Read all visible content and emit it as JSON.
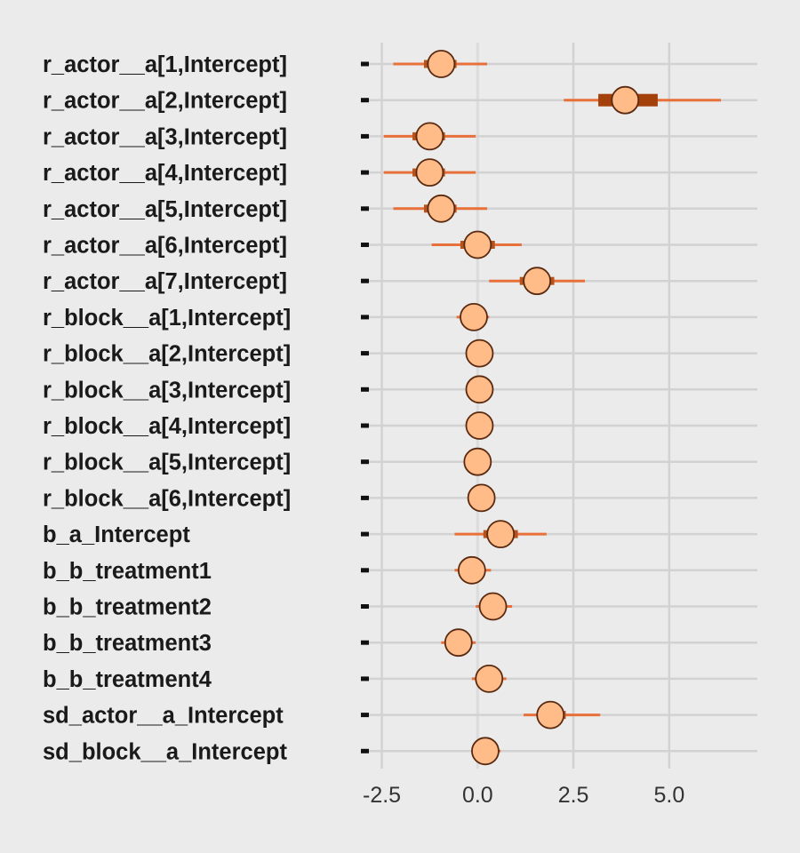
{
  "chart_data": {
    "type": "scatter",
    "title": "",
    "xlabel": "",
    "ylabel": "",
    "xlim": [
      -3.0,
      7.3
    ],
    "x_ticks": [
      -2.5,
      0.0,
      2.5,
      5.0
    ],
    "x_tick_labels": [
      "-2.5",
      "0.0",
      "2.5",
      "5.0"
    ],
    "grid": true,
    "colors": {
      "background": "#ebebeb",
      "grid": "#d2d2d2",
      "zero_line": "#dcdcdc",
      "outer_interval": "#e8703a",
      "inner_interval": "#b8521c",
      "inner_interval_highlight": "#a4400a",
      "point_fill": "#ffbb88",
      "point_stroke": "#5a2a10",
      "label": "#1a1a1a"
    },
    "parameters": [
      {
        "name": "r_actor__a[1,Intercept]",
        "estimate": -0.95,
        "inner": [
          -1.4,
          -0.55
        ],
        "outer": [
          -2.2,
          0.25
        ]
      },
      {
        "name": "r_actor__a[2,Intercept]",
        "estimate": 3.85,
        "inner": [
          3.15,
          4.7
        ],
        "outer": [
          2.25,
          6.35
        ]
      },
      {
        "name": "r_actor__a[3,Intercept]",
        "estimate": -1.25,
        "inner": [
          -1.7,
          -0.85
        ],
        "outer": [
          -2.45,
          -0.05
        ]
      },
      {
        "name": "r_actor__a[4,Intercept]",
        "estimate": -1.25,
        "inner": [
          -1.7,
          -0.85
        ],
        "outer": [
          -2.45,
          -0.05
        ]
      },
      {
        "name": "r_actor__a[5,Intercept]",
        "estimate": -0.95,
        "inner": [
          -1.4,
          -0.55
        ],
        "outer": [
          -2.2,
          0.25
        ]
      },
      {
        "name": "r_actor__a[6,Intercept]",
        "estimate": 0.0,
        "inner": [
          -0.45,
          0.45
        ],
        "outer": [
          -1.2,
          1.15
        ]
      },
      {
        "name": "r_actor__a[7,Intercept]",
        "estimate": 1.55,
        "inner": [
          1.1,
          2.0
        ],
        "outer": [
          0.3,
          2.8
        ]
      },
      {
        "name": "r_block__a[1,Intercept]",
        "estimate": -0.1,
        "inner": [
          -0.3,
          0.1
        ],
        "outer": [
          -0.55,
          0.3
        ]
      },
      {
        "name": "r_block__a[2,Intercept]",
        "estimate": 0.05,
        "inner": [
          -0.1,
          0.15
        ],
        "outer": [
          -0.2,
          0.3
        ]
      },
      {
        "name": "r_block__a[3,Intercept]",
        "estimate": 0.05,
        "inner": [
          -0.1,
          0.15
        ],
        "outer": [
          -0.2,
          0.3
        ]
      },
      {
        "name": "r_block__a[4,Intercept]",
        "estimate": 0.05,
        "inner": [
          -0.1,
          0.15
        ],
        "outer": [
          -0.2,
          0.3
        ]
      },
      {
        "name": "r_block__a[5,Intercept]",
        "estimate": 0.0,
        "inner": [
          -0.1,
          0.15
        ],
        "outer": [
          -0.2,
          0.3
        ]
      },
      {
        "name": "r_block__a[6,Intercept]",
        "estimate": 0.1,
        "inner": [
          -0.05,
          0.2
        ],
        "outer": [
          -0.15,
          0.35
        ]
      },
      {
        "name": "b_a_Intercept",
        "estimate": 0.6,
        "inner": [
          0.15,
          1.05
        ],
        "outer": [
          -0.6,
          1.8
        ]
      },
      {
        "name": "b_b_treatment1",
        "estimate": -0.15,
        "inner": [
          -0.4,
          0.1
        ],
        "outer": [
          -0.6,
          0.35
        ]
      },
      {
        "name": "b_b_treatment2",
        "estimate": 0.4,
        "inner": [
          0.15,
          0.7
        ],
        "outer": [
          -0.05,
          0.9
        ]
      },
      {
        "name": "b_b_treatment3",
        "estimate": -0.5,
        "inner": [
          -0.75,
          -0.25
        ],
        "outer": [
          -0.95,
          -0.05
        ]
      },
      {
        "name": "b_b_treatment4",
        "estimate": 0.3,
        "inner": [
          0.05,
          0.55
        ],
        "outer": [
          -0.15,
          0.75
        ]
      },
      {
        "name": "sd_actor__a_Intercept",
        "estimate": 1.9,
        "inner": [
          1.55,
          2.3
        ],
        "outer": [
          1.2,
          3.2
        ]
      },
      {
        "name": "sd_block__a_Intercept",
        "estimate": 0.2,
        "inner": [
          0.05,
          0.35
        ],
        "outer": [
          0.0,
          0.6
        ]
      }
    ]
  }
}
